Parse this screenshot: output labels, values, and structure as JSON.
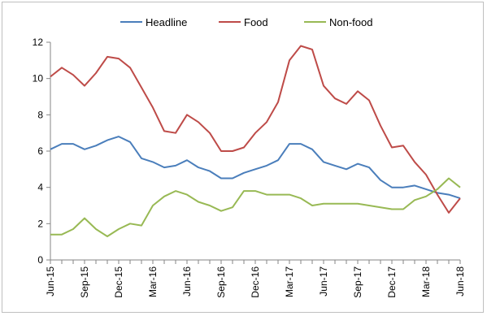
{
  "chart_data": {
    "type": "line",
    "title": "",
    "xlabel": "",
    "ylabel": "",
    "ylim": [
      0,
      12
    ],
    "yticks": [
      0,
      2,
      4,
      6,
      8,
      10,
      12
    ],
    "grid": false,
    "legend": "top",
    "x": [
      "Jun-15",
      "Jul-15",
      "Aug-15",
      "Sep-15",
      "Oct-15",
      "Nov-15",
      "Dec-15",
      "Jan-16",
      "Feb-16",
      "Mar-16",
      "Apr-16",
      "May-16",
      "Jun-16",
      "Jul-16",
      "Aug-16",
      "Sep-16",
      "Oct-16",
      "Nov-16",
      "Dec-16",
      "Jan-17",
      "Feb-17",
      "Mar-17",
      "Apr-17",
      "May-17",
      "Jun-17",
      "Jul-17",
      "Aug-17",
      "Sep-17",
      "Oct-17",
      "Nov-17",
      "Dec-17",
      "Jan-18",
      "Feb-18",
      "Mar-18",
      "Apr-18",
      "May-18",
      "Jun-18"
    ],
    "x_tick_labels": [
      "Jun-15",
      "Sep-15",
      "Dec-15",
      "Mar-16",
      "Jun-16",
      "Sep-16",
      "Dec-16",
      "Mar-17",
      "Jun-17",
      "Sep-17",
      "Dec-17",
      "Mar-18",
      "Jun-18"
    ],
    "series": [
      {
        "name": "Headline",
        "color": "#4a7ebb",
        "values": [
          6.1,
          6.4,
          6.4,
          6.1,
          6.3,
          6.6,
          6.8,
          6.5,
          5.6,
          5.4,
          5.1,
          5.2,
          5.5,
          5.1,
          4.9,
          4.5,
          4.5,
          4.8,
          5.0,
          5.2,
          5.5,
          6.4,
          6.4,
          6.1,
          5.4,
          5.2,
          5.0,
          5.3,
          5.1,
          4.4,
          4.0,
          4.0,
          4.1,
          3.9,
          3.7,
          3.6,
          3.4
        ]
      },
      {
        "name": "Food",
        "color": "#be4b48",
        "values": [
          10.1,
          10.6,
          10.2,
          9.6,
          10.3,
          11.2,
          11.1,
          10.6,
          9.5,
          8.4,
          7.1,
          7.0,
          8.0,
          7.6,
          7.0,
          6.0,
          6.0,
          6.2,
          7.0,
          7.6,
          8.7,
          11.0,
          11.8,
          11.6,
          9.6,
          8.9,
          8.6,
          9.3,
          8.8,
          7.4,
          6.2,
          6.3,
          5.4,
          4.7,
          3.6,
          2.6,
          3.4
        ]
      },
      {
        "name": "Non-food",
        "color": "#98b954",
        "values": [
          1.4,
          1.4,
          1.7,
          2.3,
          1.7,
          1.3,
          1.7,
          2.0,
          1.9,
          3.0,
          3.5,
          3.8,
          3.6,
          3.2,
          3.0,
          2.7,
          2.9,
          3.8,
          3.8,
          3.6,
          3.6,
          3.6,
          3.4,
          3.0,
          3.1,
          3.1,
          3.1,
          3.1,
          3.0,
          2.9,
          2.8,
          2.8,
          3.3,
          3.5,
          3.9,
          4.5,
          4.0
        ]
      }
    ]
  }
}
